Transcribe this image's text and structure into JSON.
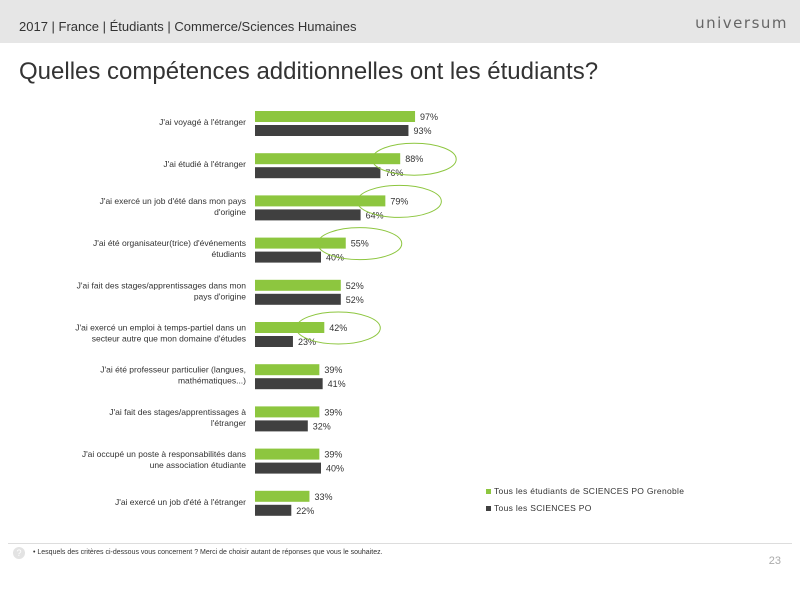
{
  "header": {
    "text": "2017 | France | Étudiants | Commerce/Sciences Humaines",
    "logo": "universum"
  },
  "title": "Quelles compétences additionnelles ont les étudiants?",
  "footnote": "• Lesquels des critères ci-dessous vous concernent ? Merci de choisir autant de réponses que vous le souhaitez.",
  "page_number": "23",
  "help_icon": "?",
  "colors": {
    "series1": "#8dc63f",
    "series2": "#404040",
    "highlight": "#8dc63f"
  },
  "chart_data": {
    "type": "bar",
    "orientation": "horizontal",
    "categories": [
      [
        "J'ai voyagé à l'étranger"
      ],
      [
        "J'ai étudié à l'étranger"
      ],
      [
        "J'ai exercé un job d'été dans mon pays",
        "d'origine"
      ],
      [
        "J'ai été organisateur(trice) d'événements",
        "étudiants"
      ],
      [
        "J'ai fait des stages/apprentissages dans mon",
        "pays d'origine"
      ],
      [
        "J'ai exercé un emploi à temps-partiel dans un",
        "secteur autre que mon domaine d'études"
      ],
      [
        "J'ai été professeur particulier (langues,",
        "mathématiques...)"
      ],
      [
        "J'ai fait des stages/apprentissages à",
        "l'étranger"
      ],
      [
        "J'ai occupé un poste à responsabilités dans",
        "une association étudiante"
      ],
      [
        "J'ai exercé un job d'été à l'étranger"
      ]
    ],
    "series": [
      {
        "name": "Tous les étudiants de SCIENCES PO Grenoble",
        "values": [
          97,
          88,
          79,
          55,
          52,
          42,
          39,
          39,
          39,
          33
        ]
      },
      {
        "name": "Tous les SCIENCES PO",
        "values": [
          93,
          76,
          64,
          40,
          52,
          23,
          41,
          32,
          40,
          22
        ]
      }
    ],
    "value_suffix": "%",
    "highlighted_categories": [
      1,
      2,
      3,
      5
    ],
    "xlim": [
      0,
      100
    ],
    "legend_position": "bottom-right"
  }
}
